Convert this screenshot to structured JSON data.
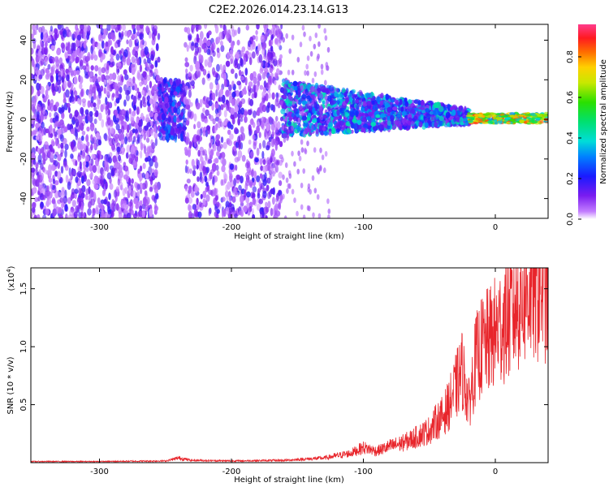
{
  "title": "C2E2.2026.014.23.14.G13",
  "chart_data": [
    {
      "type": "heatmap",
      "xlabel": "Height of straight line (km)",
      "ylabel": "Frequency (Hz)",
      "xlim": [
        -352,
        40
      ],
      "ylim": [
        -50,
        48
      ],
      "xticks": [
        -300,
        -200,
        -100,
        0
      ],
      "yticks": [
        -40,
        -20,
        0,
        20,
        40
      ],
      "colorbar": {
        "label": "Normalized spectral amplitude",
        "range": [
          0,
          0.96
        ],
        "ticks": [
          0.0,
          0.2,
          0.4,
          0.6,
          0.8
        ],
        "colormap": "rainbow (purple-blue-cyan-green-yellow-red-magenta)"
      },
      "regions": [
        {
          "x": [
            -352,
            -255
          ],
          "freq_range": [
            -50,
            48
          ],
          "amplitude": "0.05-0.20",
          "density": "dense"
        },
        {
          "x": [
            -255,
            -235
          ],
          "freq_range": [
            -10,
            20
          ],
          "amplitude": "0.15-0.30",
          "density": "cluster"
        },
        {
          "x": [
            -235,
            -162
          ],
          "freq_range": [
            -50,
            48
          ],
          "amplitude": "0.05-0.20",
          "density": "moderate"
        },
        {
          "x": [
            -162,
            -20
          ],
          "freq_range": [
            -10,
            20
          ],
          "amplitude": "0.15-0.45",
          "density": "dense band, narrowing"
        },
        {
          "x": [
            -20,
            40
          ],
          "freq_range": [
            -2,
            3
          ],
          "amplitude": "0.55-0.90",
          "density": "narrow band near 0 Hz"
        }
      ]
    },
    {
      "type": "line",
      "xlabel": "Height of straight line (km)",
      "ylabel": "SNR (10 * v/v)",
      "yunit": "(x10^4)",
      "xlim": [
        -352,
        40
      ],
      "ylim": [
        0,
        1.68
      ],
      "xticks": [
        -300,
        -200,
        -100,
        0
      ],
      "yticks": [
        0.5,
        1.0,
        1.5
      ],
      "color": "#e8252b",
      "x": [
        -352,
        -300,
        -250,
        -240,
        -230,
        -200,
        -160,
        -130,
        -110,
        -100,
        -90,
        -80,
        -70,
        -60,
        -50,
        -45,
        -40,
        -35,
        -30,
        -25,
        -20,
        -15,
        -10,
        -5,
        0,
        5,
        10,
        15,
        20,
        25,
        30,
        35,
        40
      ],
      "values": [
        0.01,
        0.01,
        0.015,
        0.04,
        0.02,
        0.015,
        0.02,
        0.04,
        0.08,
        0.13,
        0.1,
        0.14,
        0.17,
        0.22,
        0.28,
        0.35,
        0.4,
        0.5,
        0.65,
        0.8,
        0.5,
        0.88,
        1.0,
        1.05,
        1.12,
        1.2,
        1.25,
        1.35,
        1.42,
        1.5,
        1.52,
        1.55,
        1.5
      ]
    }
  ]
}
